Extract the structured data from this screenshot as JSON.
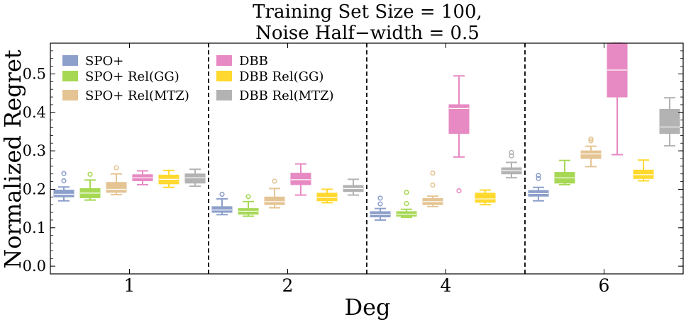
{
  "chart_data": {
    "type": "box",
    "title_lines": [
      "Training Set Size = 100,",
      "Noise Half−width = 0.5"
    ],
    "xlabel": "Deg",
    "ylabel": "Normalized Regret",
    "categories": [
      "1",
      "2",
      "4",
      "6"
    ],
    "ylim": [
      -0.02,
      0.58
    ],
    "yticks": [
      "0.0",
      "0.1",
      "0.2",
      "0.3",
      "0.4",
      "0.5"
    ],
    "grid": false,
    "legend_position": "upper-left",
    "series": [
      {
        "name": "SPO+",
        "color": "#8da0cb",
        "boxes": [
          {
            "q1": 0.18,
            "median": 0.187,
            "q3": 0.198,
            "wlo": 0.17,
            "whi": 0.206,
            "outliers": [
              0.222,
              0.241
            ]
          },
          {
            "q1": 0.14,
            "median": 0.146,
            "q3": 0.155,
            "wlo": 0.134,
            "whi": 0.175,
            "outliers": [
              0.187
            ]
          },
          {
            "q1": 0.128,
            "median": 0.134,
            "q3": 0.142,
            "wlo": 0.12,
            "whi": 0.15,
            "outliers": [
              0.162,
              0.177
            ]
          },
          {
            "q1": 0.182,
            "median": 0.189,
            "q3": 0.197,
            "wlo": 0.17,
            "whi": 0.205,
            "outliers": [
              0.228,
              0.236
            ]
          }
        ]
      },
      {
        "name": "SPO+ Rel(GG)",
        "color": "#a6d854",
        "boxes": [
          {
            "q1": 0.178,
            "median": 0.19,
            "q3": 0.202,
            "wlo": 0.172,
            "whi": 0.224,
            "outliers": [
              0.239
            ]
          },
          {
            "q1": 0.135,
            "median": 0.143,
            "q3": 0.15,
            "wlo": 0.13,
            "whi": 0.168,
            "outliers": [
              0.181
            ]
          },
          {
            "q1": 0.13,
            "median": 0.135,
            "q3": 0.142,
            "wlo": 0.127,
            "whi": 0.148,
            "outliers": [
              0.163,
              0.192
            ]
          },
          {
            "q1": 0.216,
            "median": 0.23,
            "q3": 0.244,
            "wlo": 0.212,
            "whi": 0.275,
            "outliers": []
          }
        ]
      },
      {
        "name": "SPO+ Rel(MTZ)",
        "color": "#e5c494",
        "boxes": [
          {
            "q1": 0.192,
            "median": 0.2,
            "q3": 0.218,
            "wlo": 0.186,
            "whi": 0.24,
            "outliers": [
              0.256
            ]
          },
          {
            "q1": 0.16,
            "median": 0.168,
            "q3": 0.18,
            "wlo": 0.152,
            "whi": 0.202,
            "outliers": [
              0.221
            ]
          },
          {
            "q1": 0.16,
            "median": 0.168,
            "q3": 0.176,
            "wlo": 0.155,
            "whi": 0.182,
            "outliers": [
              0.211,
              0.242
            ]
          },
          {
            "q1": 0.28,
            "median": 0.292,
            "q3": 0.3,
            "wlo": 0.259,
            "whi": 0.312,
            "outliers": [
              0.326,
              0.331
            ]
          }
        ]
      },
      {
        "name": "DBB",
        "color": "#e78ac3",
        "boxes": [
          {
            "q1": 0.222,
            "median": 0.23,
            "q3": 0.238,
            "wlo": 0.212,
            "whi": 0.248,
            "outliers": []
          },
          {
            "q1": 0.212,
            "median": 0.225,
            "q3": 0.242,
            "wlo": 0.185,
            "whi": 0.266,
            "outliers": []
          },
          {
            "q1": 0.345,
            "median": 0.41,
            "q3": 0.42,
            "wlo": 0.284,
            "whi": 0.495,
            "outliers": [
              0.196
            ]
          },
          {
            "q1": 0.44,
            "median": 0.51,
            "q3": 0.58,
            "wlo": 0.29,
            "whi": 0.58,
            "outliers": []
          }
        ]
      },
      {
        "name": "DBB Rel(GG)",
        "color": "#ffd92f",
        "boxes": [
          {
            "q1": 0.214,
            "median": 0.226,
            "q3": 0.237,
            "wlo": 0.205,
            "whi": 0.249,
            "outliers": []
          },
          {
            "q1": 0.17,
            "median": 0.178,
            "q3": 0.19,
            "wlo": 0.165,
            "whi": 0.2,
            "outliers": []
          },
          {
            "q1": 0.166,
            "median": 0.175,
            "q3": 0.19,
            "wlo": 0.16,
            "whi": 0.198,
            "outliers": []
          },
          {
            "q1": 0.228,
            "median": 0.238,
            "q3": 0.25,
            "wlo": 0.222,
            "whi": 0.276,
            "outliers": []
          }
        ]
      },
      {
        "name": "DBB Rel(MTZ)",
        "color": "#b3b3b3",
        "boxes": [
          {
            "q1": 0.216,
            "median": 0.23,
            "q3": 0.24,
            "wlo": 0.208,
            "whi": 0.252,
            "outliers": []
          },
          {
            "q1": 0.194,
            "median": 0.202,
            "q3": 0.21,
            "wlo": 0.185,
            "whi": 0.226,
            "outliers": []
          },
          {
            "q1": 0.24,
            "median": 0.248,
            "q3": 0.256,
            "wlo": 0.23,
            "whi": 0.27,
            "outliers": [
              0.287,
              0.296
            ]
          },
          {
            "q1": 0.345,
            "median": 0.362,
            "q3": 0.408,
            "wlo": 0.313,
            "whi": 0.438,
            "outliers": []
          }
        ]
      }
    ]
  }
}
